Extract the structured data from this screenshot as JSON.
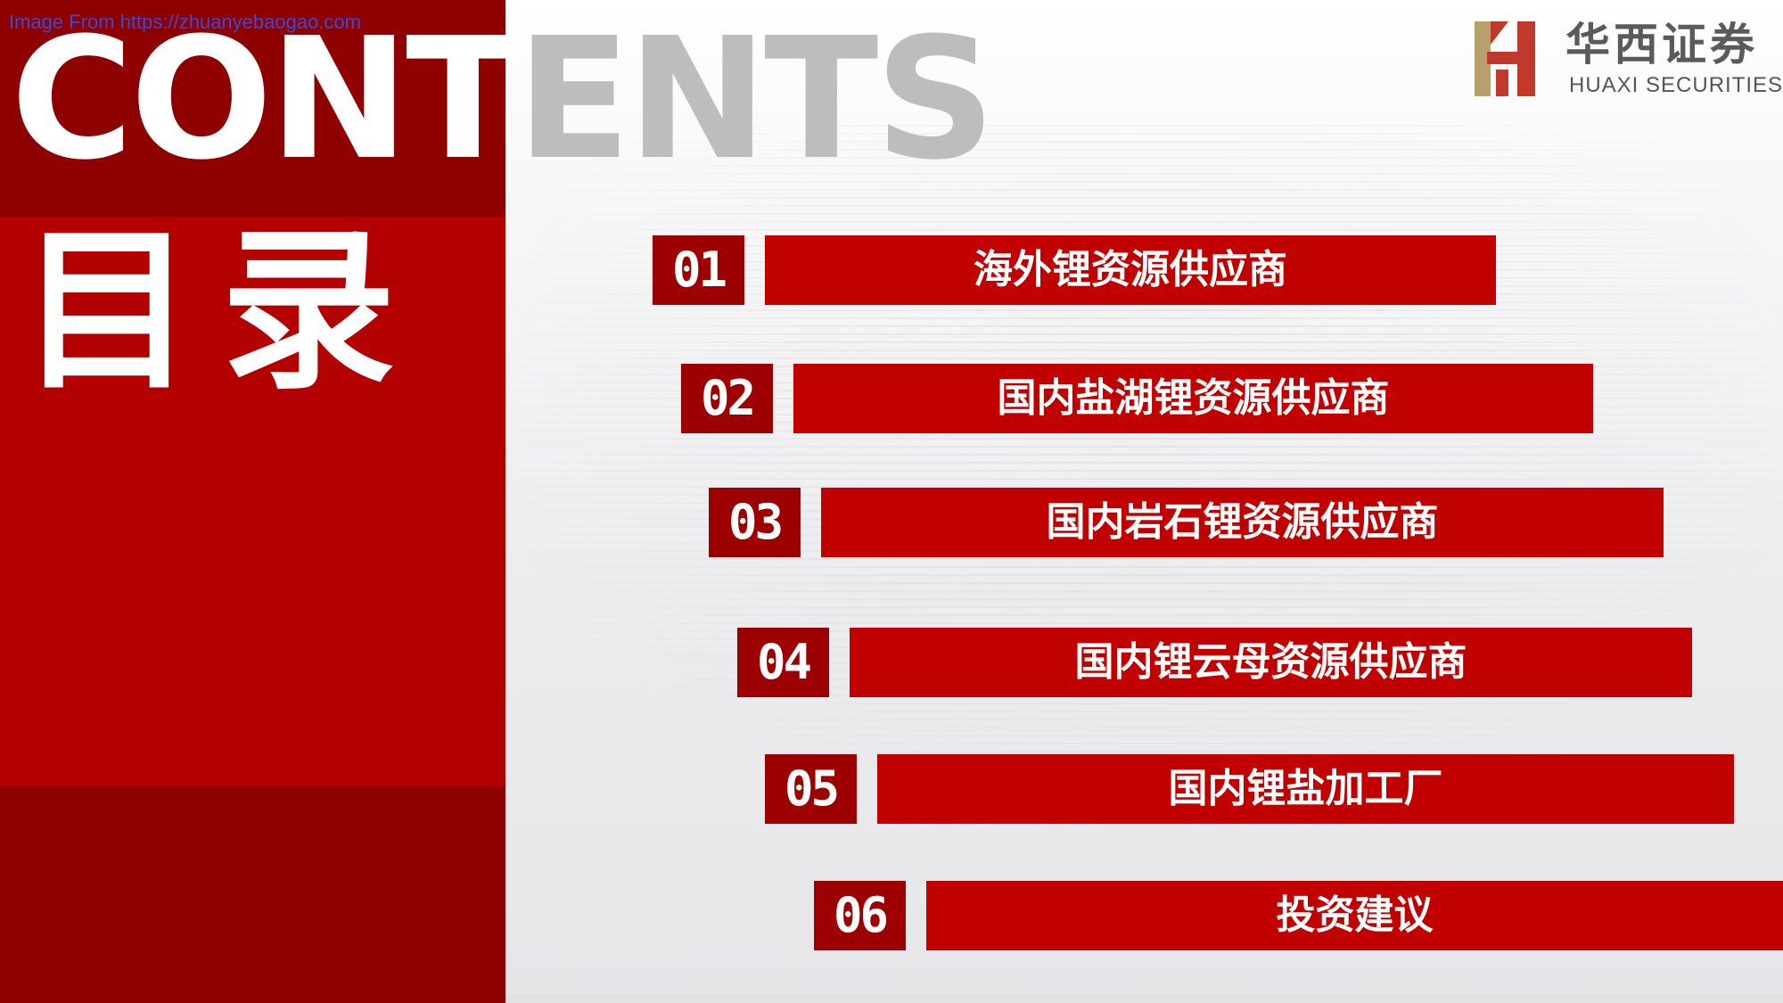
{
  "watermark": "Image From https://zhuanyebaogao.com",
  "heading": {
    "contents_white": "CONT",
    "contents_gray": "ENTS",
    "title_cn": "目录"
  },
  "logo": {
    "name_cn": "华西证券",
    "name_en": "HUAXI SECURITIES"
  },
  "menu": {
    "items": [
      {
        "number": "01",
        "label": "海外锂资源供应商"
      },
      {
        "number": "02",
        "label": "国内盐湖锂资源供应商"
      },
      {
        "number": "03",
        "label": "国内岩石锂资源供应商"
      },
      {
        "number": "04",
        "label": "国内锂云母资源供应商"
      },
      {
        "number": "05",
        "label": "国内锂盐加工厂"
      },
      {
        "number": "06",
        "label": "投资建议"
      }
    ]
  },
  "colors": {
    "panel_dark": "#8f0000",
    "panel_red": "#b30000",
    "bar_red": "#c10000",
    "number_box": "#9c0000",
    "gray_text": "#bdbdbd"
  }
}
